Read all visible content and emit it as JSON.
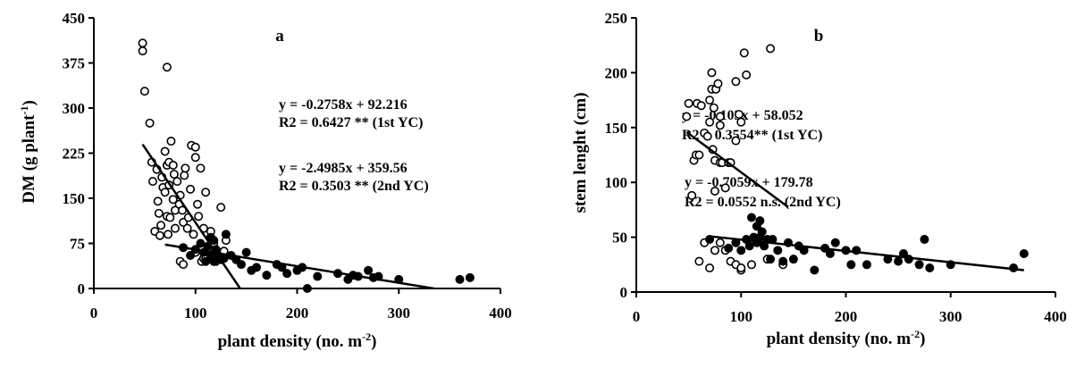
{
  "chart_data": [
    {
      "type": "scatter",
      "panel_label": "a",
      "ylabel": "DM (g plant⁻¹)",
      "xlabel": "plant density (no. m⁻²)",
      "xlim": [
        0,
        400
      ],
      "ylim": [
        0,
        450
      ],
      "x_ticks": [
        "0",
        "100",
        "200",
        "300",
        "400"
      ],
      "y_ticks": [
        "0",
        "75",
        "150",
        "225",
        "300",
        "375",
        "450"
      ],
      "annotations": [
        "y = -0.2758x + 92.216",
        "R2 = 0.6427 ** (1st YC)",
        "y = -2.4985x + 359.56",
        "R2 = 0.3503 ** (2nd YC)"
      ],
      "series": [
        {
          "marker": "open-circle",
          "x": [
            48,
            48,
            50,
            55,
            57,
            58,
            60,
            62,
            63,
            64,
            65,
            66,
            67,
            68,
            70,
            70,
            72,
            72,
            73,
            74,
            74,
            75,
            76,
            78,
            78,
            79,
            80,
            80,
            82,
            84,
            85,
            85,
            87,
            88,
            88,
            89,
            90,
            92,
            93,
            95,
            96,
            98,
            100,
            100,
            102,
            103,
            105,
            106,
            108,
            110,
            112,
            115,
            118,
            122,
            126,
            128,
            130,
            72,
            100,
            108,
            110,
            120,
            125
          ],
          "y": [
            408,
            395,
            328,
            275,
            210,
            178,
            95,
            198,
            145,
            125,
            88,
            105,
            185,
            168,
            228,
            160,
            205,
            120,
            90,
            172,
            210,
            118,
            245,
            205,
            148,
            190,
            130,
            100,
            178,
            140,
            155,
            45,
            130,
            110,
            40,
            188,
            200,
            100,
            118,
            165,
            238,
            90,
            218,
            60,
            140,
            120,
            200,
            45,
            50,
            160,
            60,
            95,
            75,
            60,
            60,
            62,
            80,
            368,
            235,
            100,
            50,
            45,
            135
          ]
        },
        {
          "marker": "filled-circle",
          "x": [
            88,
            95,
            100,
            105,
            108,
            110,
            112,
            115,
            115,
            118,
            118,
            120,
            122,
            125,
            128,
            130,
            135,
            140,
            145,
            150,
            155,
            160,
            170,
            180,
            185,
            190,
            200,
            205,
            210,
            220,
            240,
            250,
            255,
            260,
            270,
            275,
            280,
            300,
            360,
            370
          ],
          "y": [
            68,
            55,
            65,
            75,
            60,
            45,
            70,
            85,
            55,
            80,
            45,
            65,
            55,
            48,
            50,
            90,
            55,
            48,
            40,
            60,
            30,
            35,
            22,
            40,
            35,
            25,
            30,
            35,
            0,
            20,
            25,
            15,
            22,
            20,
            30,
            18,
            20,
            15,
            15,
            18
          ]
        }
      ],
      "trend_lines": [
        {
          "series": "open",
          "slope": -2.4985,
          "intercept": 359.56,
          "x_range": [
            48,
            144
          ]
        },
        {
          "series": "filled",
          "slope": -0.2758,
          "intercept": 92.216,
          "x_range": [
            70,
            335
          ]
        }
      ]
    },
    {
      "type": "scatter",
      "panel_label": "b",
      "ylabel": "stem lenght (cm)",
      "xlabel": "plant density (no. m⁻²)",
      "xlim": [
        0,
        400
      ],
      "ylim": [
        0,
        250
      ],
      "x_ticks": [
        "0",
        "100",
        "200",
        "300",
        "400"
      ],
      "y_ticks": [
        "0",
        "50",
        "100",
        "150",
        "200",
        "250"
      ],
      "annotations": [
        "y = -0.103x + 58.052",
        "R2 = 0.3554** (1st YC)",
        "y = -0.7059x + 179.78",
        "R2 = 0.0552 n.s. (2nd YC)"
      ],
      "series": [
        {
          "marker": "open-circle",
          "x": [
            48,
            50,
            53,
            55,
            57,
            58,
            60,
            62,
            65,
            68,
            70,
            70,
            72,
            72,
            73,
            74,
            75,
            75,
            76,
            78,
            80,
            80,
            80,
            82,
            85,
            88,
            90,
            95,
            95,
            98,
            100,
            100,
            103,
            105,
            128,
            60,
            65,
            70,
            75,
            80,
            85,
            90,
            95,
            100,
            110,
            125,
            140
          ],
          "y": [
            160,
            172,
            88,
            120,
            125,
            172,
            125,
            170,
            145,
            142,
            155,
            175,
            200,
            185,
            130,
            168,
            120,
            92,
            185,
            190,
            160,
            152,
            118,
            118,
            95,
            118,
            118,
            192,
            138,
            162,
            155,
            20,
            218,
            198,
            222,
            28,
            45,
            22,
            38,
            45,
            38,
            28,
            25,
            22,
            25,
            30,
            25
          ]
        },
        {
          "marker": "filled-circle",
          "x": [
            70,
            88,
            95,
            100,
            105,
            108,
            110,
            112,
            115,
            115,
            118,
            118,
            120,
            122,
            125,
            128,
            130,
            135,
            140,
            145,
            150,
            155,
            160,
            170,
            180,
            185,
            190,
            200,
            205,
            210,
            220,
            240,
            250,
            255,
            260,
            270,
            275,
            280,
            300,
            360,
            370
          ],
          "y": [
            48,
            40,
            45,
            38,
            48,
            42,
            68,
            50,
            60,
            45,
            65,
            50,
            55,
            42,
            48,
            30,
            48,
            38,
            28,
            45,
            30,
            42,
            38,
            20,
            40,
            35,
            45,
            38,
            25,
            38,
            25,
            30,
            28,
            35,
            30,
            25,
            48,
            22,
            25,
            22,
            35
          ]
        }
      ],
      "trend_lines": [
        {
          "series": "open",
          "slope": -0.7059,
          "intercept": 179.78,
          "x_range": [
            48,
            145
          ]
        },
        {
          "series": "filled",
          "slope": -0.103,
          "intercept": 58.052,
          "x_range": [
            70,
            370
          ]
        }
      ]
    }
  ]
}
